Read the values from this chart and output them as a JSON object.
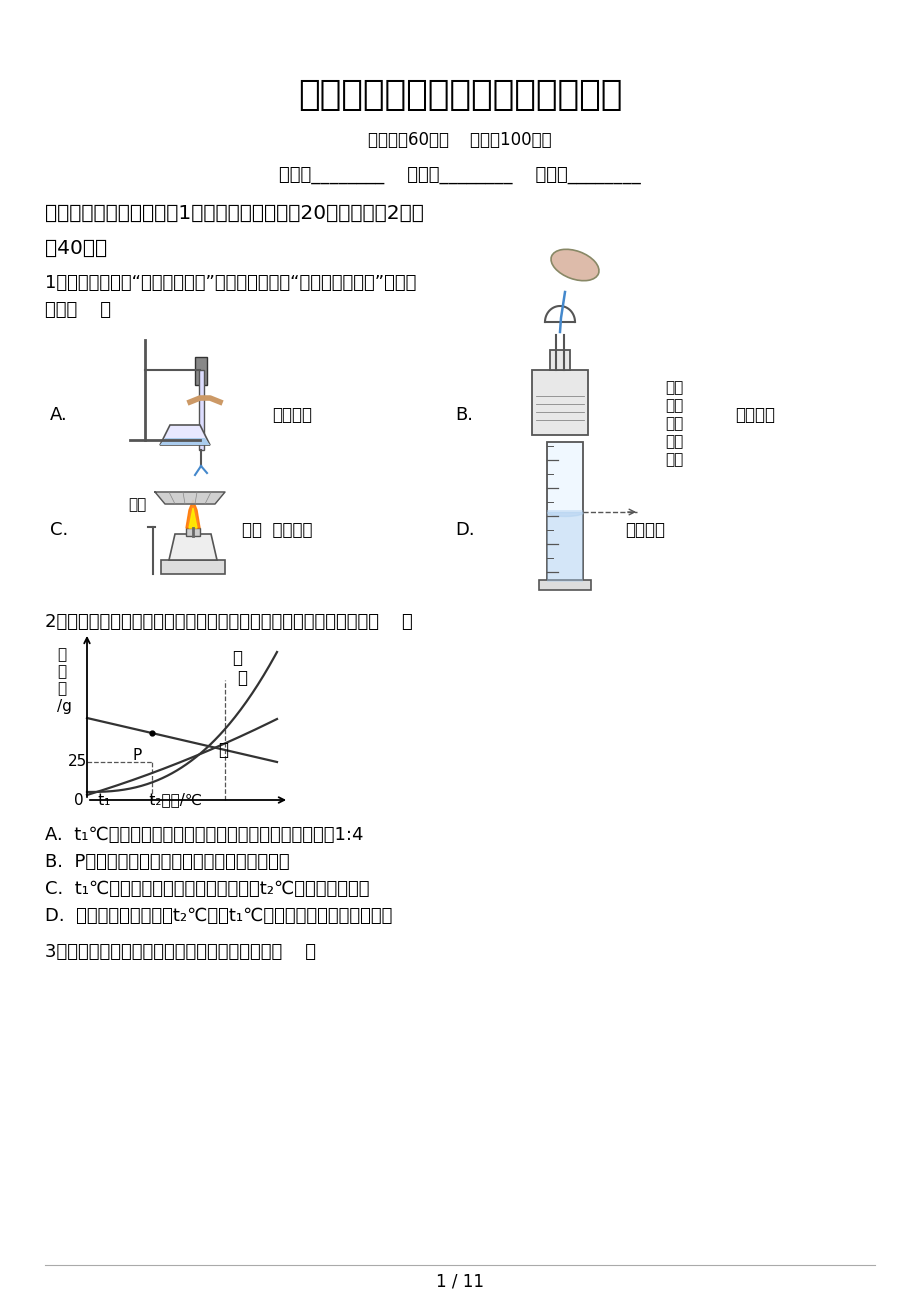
{
  "title": "九年级化学下册月考测试卷及答案",
  "subtitle": "（时间：60分钟    分数：100分）",
  "bg_color": "#ffffff",
  "text_color": "#000000",
  "page_footer": "1 / 11"
}
